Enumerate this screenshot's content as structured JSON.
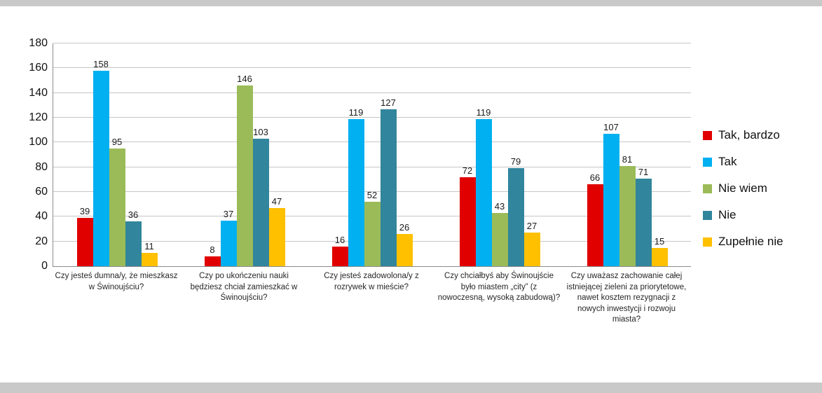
{
  "chart_data": {
    "type": "bar",
    "title": "",
    "xlabel": "",
    "ylabel": "",
    "ylim": [
      0,
      180
    ],
    "yticks": [
      0,
      20,
      40,
      60,
      80,
      100,
      120,
      140,
      160,
      180
    ],
    "grid": "horizontal",
    "legend_position": "right",
    "categories": [
      "Czy jesteś dumna/y, że mieszkasz w Świnoujściu?",
      "Czy po ukończeniu nauki będziesz chciał zamieszkać w Świnoujściu?",
      "Czy jesteś zadowolona/y z rozrywek w mieście?",
      "Czy chciałbyś aby Świnoujście było miastem „city” (z nowoczesną, wysoką zabudową)?",
      "Czy uważasz zachowanie całej istniejącej zieleni za priorytetowe, nawet kosztem rezygnacji z nowych inwestycji i rozwoju miasta?"
    ],
    "series": [
      {
        "name": "Tak, bardzo",
        "color": "#e00000",
        "values": [
          39,
          8,
          16,
          72,
          66
        ]
      },
      {
        "name": "Tak",
        "color": "#00b0f0",
        "values": [
          158,
          37,
          119,
          119,
          107
        ]
      },
      {
        "name": "Nie wiem",
        "color": "#9bbb59",
        "values": [
          95,
          146,
          52,
          43,
          81
        ]
      },
      {
        "name": "Nie",
        "color": "#31859c",
        "values": [
          36,
          103,
          127,
          79,
          71
        ]
      },
      {
        "name": "Zupełnie nie",
        "color": "#ffc000",
        "values": [
          11,
          47,
          26,
          27,
          15
        ]
      }
    ]
  }
}
